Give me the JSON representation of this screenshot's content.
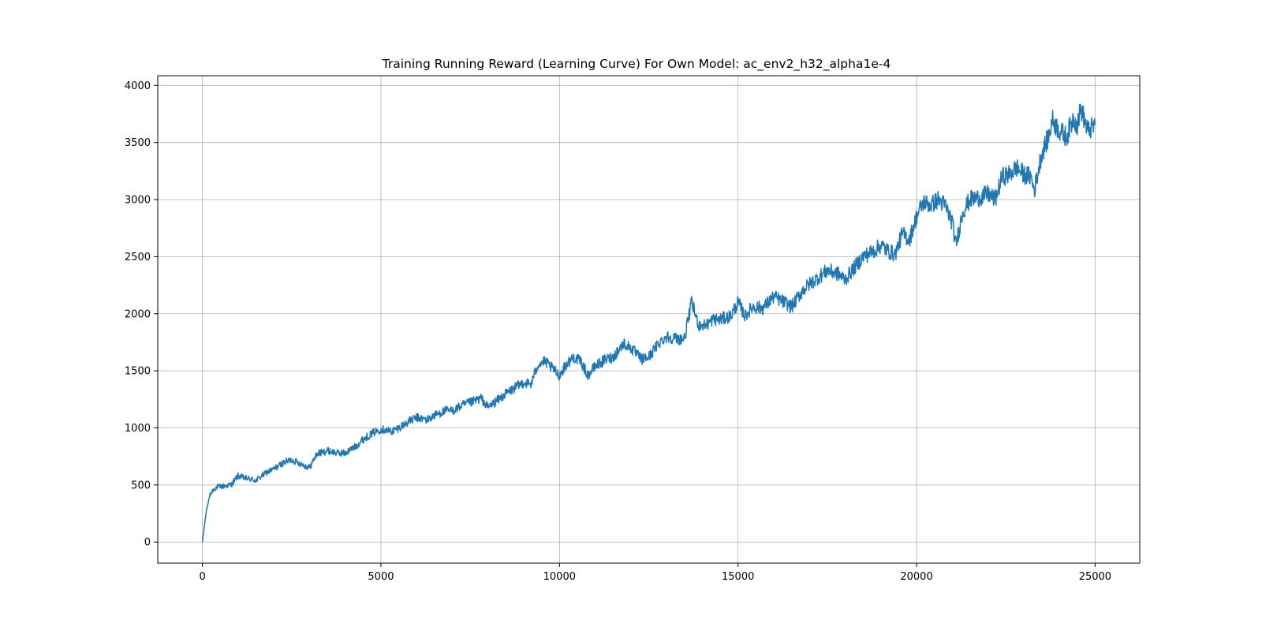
{
  "chart_data": {
    "type": "line",
    "title": "Training Running Reward (Learning Curve) For Own Model: ac_env2_h32_alpha1e-4",
    "xlabel": "",
    "ylabel": "",
    "xlim": [
      -1250,
      26250
    ],
    "ylim": [
      -185,
      4085
    ],
    "x_ticks": [
      0,
      5000,
      10000,
      15000,
      20000,
      25000
    ],
    "y_ticks": [
      0,
      500,
      1000,
      1500,
      2000,
      2500,
      3000,
      3500,
      4000
    ],
    "x_tick_labels": [
      "0",
      "5000",
      "10000",
      "15000",
      "20000",
      "25000"
    ],
    "y_tick_labels": [
      "0",
      "500",
      "1000",
      "1500",
      "2000",
      "2500",
      "3000",
      "3500",
      "4000"
    ],
    "grid": true,
    "series": [
      {
        "color": "#1f77b4",
        "x": [
          0,
          100,
          200,
          300,
          400,
          600,
          800,
          1000,
          1200,
          1500,
          1800,
          2000,
          2300,
          2500,
          2800,
          3000,
          3200,
          3500,
          3800,
          4000,
          4300,
          4500,
          4800,
          5000,
          5300,
          5500,
          5800,
          6000,
          6300,
          6500,
          6800,
          7000,
          7300,
          7500,
          7800,
          8000,
          8300,
          8500,
          8800,
          9000,
          9200,
          9400,
          9600,
          9800,
          10000,
          10200,
          10400,
          10600,
          10800,
          11000,
          11300,
          11500,
          11800,
          12000,
          12300,
          12500,
          12800,
          13000,
          13300,
          13500,
          13700,
          13900,
          14100,
          14300,
          14500,
          14800,
          15000,
          15200,
          15400,
          15700,
          16000,
          16300,
          16500,
          16800,
          17000,
          17300,
          17500,
          17800,
          18000,
          18300,
          18500,
          18800,
          19000,
          19200,
          19400,
          19600,
          19800,
          20000,
          20200,
          20400,
          20600,
          20800,
          21000,
          21100,
          21300,
          21500,
          21800,
          22000,
          22200,
          22400,
          22600,
          22800,
          23000,
          23200,
          23300,
          23500,
          23700,
          23800,
          24000,
          24200,
          24400,
          24500,
          24600,
          24800,
          25000
        ],
        "values": [
          0,
          250,
          400,
          460,
          480,
          490,
          500,
          580,
          560,
          540,
          610,
          640,
          700,
          720,
          680,
          650,
          770,
          800,
          780,
          780,
          840,
          900,
          960,
          990,
          970,
          1000,
          1060,
          1090,
          1070,
          1110,
          1150,
          1150,
          1200,
          1220,
          1260,
          1180,
          1250,
          1300,
          1360,
          1400,
          1380,
          1560,
          1580,
          1520,
          1460,
          1560,
          1620,
          1580,
          1460,
          1540,
          1600,
          1620,
          1740,
          1700,
          1600,
          1620,
          1750,
          1800,
          1780,
          1780,
          2100,
          1900,
          1900,
          1950,
          1950,
          1980,
          2100,
          1980,
          2060,
          2050,
          2150,
          2100,
          2060,
          2200,
          2260,
          2330,
          2380,
          2350,
          2300,
          2420,
          2500,
          2550,
          2600,
          2550,
          2520,
          2700,
          2650,
          2850,
          2980,
          2950,
          3000,
          2950,
          2800,
          2600,
          2900,
          3000,
          3020,
          3050,
          3000,
          3200,
          3220,
          3280,
          3220,
          3200,
          3080,
          3400,
          3550,
          3700,
          3600,
          3550,
          3720,
          3650,
          3800,
          3600,
          3650
        ]
      }
    ]
  }
}
